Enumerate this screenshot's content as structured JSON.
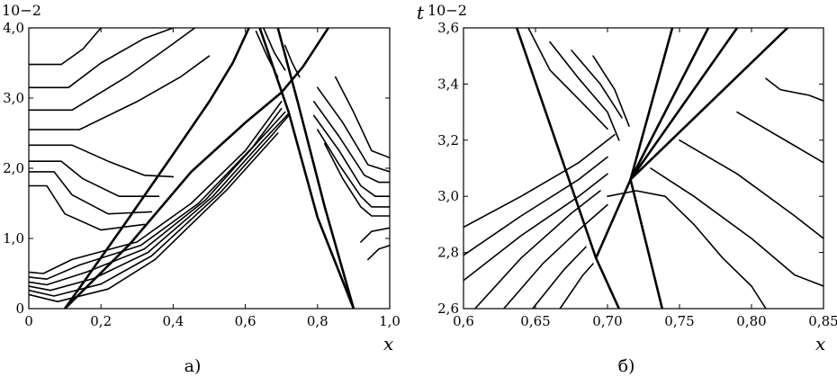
{
  "chart_data": [
    {
      "type": "line",
      "caption": "а)",
      "xlabel": "x",
      "ylabel_scale": "10−2",
      "xlim": [
        0,
        1.0
      ],
      "ylim": [
        0,
        4.0
      ],
      "x_ticks": [
        0,
        0.2,
        0.4,
        0.6,
        0.8,
        1.0
      ],
      "x_tick_labels": [
        "0",
        "0,2",
        "0,4",
        "0,6",
        "0,8",
        "1,0"
      ],
      "y_ticks": [
        0,
        1.0,
        2.0,
        3.0,
        4.0
      ],
      "y_tick_labels": [
        "0",
        "1,0",
        "2,0",
        "3,0",
        "4,0"
      ],
      "grid": false,
      "shocks": [
        [
          [
            0.1,
            0.0
          ],
          [
            0.28,
            0.92
          ],
          [
            0.45,
            1.95
          ],
          [
            0.6,
            2.65
          ],
          [
            0.7,
            3.08
          ],
          [
            0.76,
            3.45
          ],
          [
            0.83,
            4.0
          ]
        ],
        [
          [
            0.1,
            0.0
          ],
          [
            0.265,
            1.2
          ],
          [
            0.4,
            2.2
          ],
          [
            0.5,
            2.95
          ],
          [
            0.565,
            3.5
          ],
          [
            0.61,
            4.0
          ]
        ],
        [
          [
            0.9,
            0.0
          ],
          [
            0.8,
            1.3
          ],
          [
            0.72,
            2.8
          ],
          [
            0.64,
            4.0
          ]
        ],
        [
          [
            0.9,
            0.0
          ],
          [
            0.82,
            1.45
          ],
          [
            0.745,
            2.95
          ],
          [
            0.69,
            4.0
          ]
        ]
      ],
      "contours": [
        [
          [
            0.0,
            3.48
          ],
          [
            0.09,
            3.48
          ],
          [
            0.15,
            3.7
          ],
          [
            0.2,
            4.0
          ]
        ],
        [
          [
            0.0,
            3.15
          ],
          [
            0.11,
            3.15
          ],
          [
            0.2,
            3.5
          ],
          [
            0.32,
            3.85
          ],
          [
            0.4,
            4.0
          ]
        ],
        [
          [
            0.0,
            2.83
          ],
          [
            0.12,
            2.83
          ],
          [
            0.27,
            3.3
          ],
          [
            0.38,
            3.7
          ],
          [
            0.46,
            4.0
          ]
        ],
        [
          [
            0.0,
            2.55
          ],
          [
            0.14,
            2.55
          ],
          [
            0.3,
            2.95
          ],
          [
            0.42,
            3.3
          ],
          [
            0.5,
            3.6
          ]
        ],
        [
          [
            0.0,
            2.33
          ],
          [
            0.12,
            2.33
          ],
          [
            0.22,
            2.1
          ],
          [
            0.32,
            1.9
          ],
          [
            0.4,
            1.88
          ]
        ],
        [
          [
            0.0,
            2.1
          ],
          [
            0.09,
            2.1
          ],
          [
            0.15,
            1.85
          ],
          [
            0.25,
            1.6
          ],
          [
            0.36,
            1.6
          ]
        ],
        [
          [
            0.0,
            1.95
          ],
          [
            0.07,
            1.95
          ],
          [
            0.12,
            1.62
          ],
          [
            0.22,
            1.35
          ],
          [
            0.34,
            1.38
          ]
        ],
        [
          [
            0.0,
            1.75
          ],
          [
            0.05,
            1.75
          ],
          [
            0.1,
            1.35
          ],
          [
            0.2,
            1.12
          ],
          [
            0.32,
            1.2
          ]
        ],
        [
          [
            0.0,
            0.52
          ],
          [
            0.04,
            0.5
          ],
          [
            0.12,
            0.7
          ],
          [
            0.3,
            0.95
          ],
          [
            0.45,
            1.5
          ],
          [
            0.6,
            2.25
          ],
          [
            0.7,
            2.95
          ]
        ],
        [
          [
            0.0,
            0.45
          ],
          [
            0.05,
            0.42
          ],
          [
            0.14,
            0.62
          ],
          [
            0.31,
            0.9
          ],
          [
            0.47,
            1.5
          ],
          [
            0.62,
            2.3
          ],
          [
            0.7,
            2.85
          ]
        ],
        [
          [
            0.0,
            0.38
          ],
          [
            0.05,
            0.34
          ],
          [
            0.16,
            0.52
          ],
          [
            0.32,
            0.85
          ],
          [
            0.49,
            1.55
          ],
          [
            0.63,
            2.35
          ],
          [
            0.71,
            2.8
          ]
        ],
        [
          [
            0.0,
            0.32
          ],
          [
            0.06,
            0.26
          ],
          [
            0.18,
            0.43
          ],
          [
            0.33,
            0.8
          ],
          [
            0.51,
            1.6
          ],
          [
            0.65,
            2.4
          ],
          [
            0.72,
            2.78
          ]
        ],
        [
          [
            0.0,
            0.26
          ],
          [
            0.07,
            0.18
          ],
          [
            0.2,
            0.35
          ],
          [
            0.34,
            0.75
          ],
          [
            0.53,
            1.65
          ],
          [
            0.67,
            2.45
          ],
          [
            0.72,
            2.75
          ]
        ],
        [
          [
            0.0,
            0.2
          ],
          [
            0.08,
            0.1
          ],
          [
            0.22,
            0.28
          ],
          [
            0.35,
            0.7
          ],
          [
            0.55,
            1.7
          ],
          [
            0.69,
            2.5
          ]
        ],
        [
          [
            0.82,
            2.35
          ],
          [
            0.87,
            1.85
          ],
          [
            0.92,
            1.45
          ],
          [
            0.95,
            1.32
          ],
          [
            1.0,
            1.32
          ]
        ],
        [
          [
            0.8,
            2.55
          ],
          [
            0.86,
            2.05
          ],
          [
            0.92,
            1.6
          ],
          [
            0.95,
            1.45
          ],
          [
            1.0,
            1.45
          ]
        ],
        [
          [
            0.79,
            2.75
          ],
          [
            0.86,
            2.25
          ],
          [
            0.92,
            1.75
          ],
          [
            0.96,
            1.6
          ],
          [
            1.0,
            1.6
          ]
        ],
        [
          [
            0.79,
            2.95
          ],
          [
            0.86,
            2.45
          ],
          [
            0.93,
            1.9
          ],
          [
            0.97,
            1.8
          ],
          [
            1.0,
            1.8
          ]
        ],
        [
          [
            0.8,
            3.15
          ],
          [
            0.87,
            2.65
          ],
          [
            0.94,
            2.05
          ],
          [
            1.0,
            1.95
          ]
        ],
        [
          [
            0.85,
            3.3
          ],
          [
            0.9,
            2.8
          ],
          [
            0.95,
            2.25
          ],
          [
            1.0,
            2.15
          ]
        ],
        [
          [
            0.92,
            0.95
          ],
          [
            0.95,
            1.1
          ],
          [
            1.0,
            1.15
          ]
        ],
        [
          [
            0.94,
            0.7
          ],
          [
            0.97,
            0.85
          ],
          [
            1.0,
            0.9
          ]
        ],
        [
          [
            0.63,
            3.95
          ],
          [
            0.66,
            3.6
          ],
          [
            0.69,
            3.3
          ]
        ],
        [
          [
            0.65,
            4.0
          ],
          [
            0.68,
            3.65
          ],
          [
            0.71,
            3.4
          ]
        ],
        [
          [
            0.71,
            3.75
          ],
          [
            0.73,
            3.5
          ],
          [
            0.75,
            3.3
          ]
        ]
      ]
    },
    {
      "type": "line",
      "caption": "б)",
      "xlabel": "x",
      "ylabel": "t",
      "ylabel_scale": "10−2",
      "xlim": [
        0.6,
        0.85
      ],
      "ylim": [
        2.6,
        3.6
      ],
      "x_ticks": [
        0.6,
        0.65,
        0.7,
        0.75,
        0.8,
        0.85
      ],
      "x_tick_labels": [
        "0,6",
        "0,65",
        "0,70",
        "0,75",
        "0,80",
        "0,85"
      ],
      "y_ticks": [
        2.6,
        2.8,
        3.0,
        3.2,
        3.4,
        3.6
      ],
      "y_tick_labels": [
        "2,6",
        "2,8",
        "3,0",
        "3,2",
        "3,4",
        "3,6"
      ],
      "grid": false,
      "shocks": [
        [
          [
            0.637,
            3.6
          ],
          [
            0.692,
            2.78
          ],
          [
            0.708,
            2.6
          ]
        ],
        [
          [
            0.692,
            2.78
          ],
          [
            0.716,
            3.06
          ],
          [
            0.825,
            3.6
          ]
        ],
        [
          [
            0.716,
            3.06
          ],
          [
            0.738,
            2.6
          ]
        ],
        [
          [
            0.716,
            3.06
          ],
          [
            0.79,
            3.6
          ]
        ],
        [
          [
            0.716,
            3.06
          ],
          [
            0.77,
            3.6
          ]
        ],
        [
          [
            0.716,
            3.06
          ],
          [
            0.745,
            3.6
          ]
        ]
      ],
      "contours": [
        [
          [
            0.6,
            2.89
          ],
          [
            0.64,
            3.0
          ],
          [
            0.68,
            3.12
          ],
          [
            0.705,
            3.22
          ]
        ],
        [
          [
            0.6,
            2.79
          ],
          [
            0.64,
            2.93
          ],
          [
            0.68,
            3.06
          ],
          [
            0.7,
            3.14
          ]
        ],
        [
          [
            0.6,
            2.7
          ],
          [
            0.64,
            2.86
          ],
          [
            0.68,
            3.0
          ],
          [
            0.7,
            3.08
          ]
        ],
        [
          [
            0.608,
            2.6
          ],
          [
            0.64,
            2.78
          ],
          [
            0.675,
            2.94
          ],
          [
            0.695,
            3.02
          ]
        ],
        [
          [
            0.628,
            2.6
          ],
          [
            0.655,
            2.76
          ],
          [
            0.68,
            2.88
          ],
          [
            0.7,
            2.97
          ]
        ],
        [
          [
            0.648,
            2.6
          ],
          [
            0.67,
            2.74
          ],
          [
            0.685,
            2.82
          ]
        ],
        [
          [
            0.667,
            2.6
          ],
          [
            0.683,
            2.72
          ],
          [
            0.69,
            2.76
          ]
        ],
        [
          [
            0.645,
            3.6
          ],
          [
            0.66,
            3.45
          ],
          [
            0.685,
            3.32
          ],
          [
            0.7,
            3.24
          ]
        ],
        [
          [
            0.66,
            3.55
          ],
          [
            0.68,
            3.42
          ],
          [
            0.7,
            3.3
          ],
          [
            0.708,
            3.2
          ]
        ],
        [
          [
            0.675,
            3.52
          ],
          [
            0.695,
            3.4
          ],
          [
            0.71,
            3.28
          ]
        ],
        [
          [
            0.69,
            3.5
          ],
          [
            0.705,
            3.38
          ],
          [
            0.715,
            3.25
          ]
        ],
        [
          [
            0.7,
            3.0
          ],
          [
            0.72,
            3.02
          ],
          [
            0.74,
            3.0
          ],
          [
            0.76,
            2.9
          ],
          [
            0.78,
            2.78
          ],
          [
            0.8,
            2.68
          ],
          [
            0.81,
            2.6
          ]
        ],
        [
          [
            0.73,
            3.1
          ],
          [
            0.76,
            3.0
          ],
          [
            0.8,
            2.85
          ],
          [
            0.83,
            2.72
          ],
          [
            0.85,
            2.68
          ]
        ],
        [
          [
            0.75,
            3.2
          ],
          [
            0.79,
            3.08
          ],
          [
            0.83,
            2.93
          ],
          [
            0.85,
            2.85
          ]
        ],
        [
          [
            0.79,
            3.3
          ],
          [
            0.81,
            3.24
          ],
          [
            0.83,
            3.18
          ],
          [
            0.85,
            3.12
          ]
        ],
        [
          [
            0.81,
            3.42
          ],
          [
            0.82,
            3.38
          ],
          [
            0.84,
            3.36
          ],
          [
            0.85,
            3.34
          ]
        ]
      ]
    }
  ]
}
